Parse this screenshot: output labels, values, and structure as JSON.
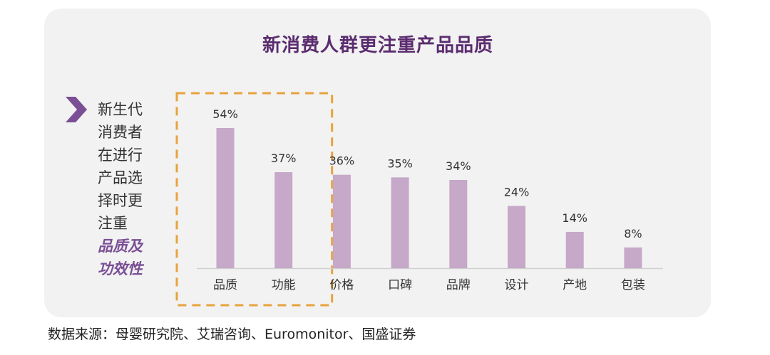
{
  "chart_data": {
    "type": "bar",
    "title": "新消费人群更注重产品品质",
    "categories": [
      "品质",
      "功能",
      "价格",
      "口碑",
      "品牌",
      "设计",
      "产地",
      "包装"
    ],
    "values": [
      54,
      37,
      36,
      35,
      34,
      24,
      14,
      8
    ],
    "value_labels": [
      "54%",
      "37%",
      "36%",
      "35%",
      "34%",
      "24%",
      "14%",
      "8%"
    ],
    "unit": "%",
    "ylim": [
      0,
      60
    ],
    "grid": false,
    "bar_color": "#c6a8c8",
    "highlighted_categories": [
      "品质",
      "功能"
    ],
    "highlight_color": "#e8a33d"
  },
  "callout": {
    "lines": [
      "新生代",
      "消费者",
      "在进行",
      "产品选",
      "择时更",
      "注重"
    ],
    "emphasis": [
      "品质及",
      "功效性"
    ],
    "icon": "chevron-right-icon",
    "icon_color": "#7a4f95",
    "emphasis_color": "#7a4f95"
  },
  "source": "数据来源：母婴研究院、艾瑞咨询、Euromonitor、国盛证券",
  "title_color": "#5b2c6f"
}
